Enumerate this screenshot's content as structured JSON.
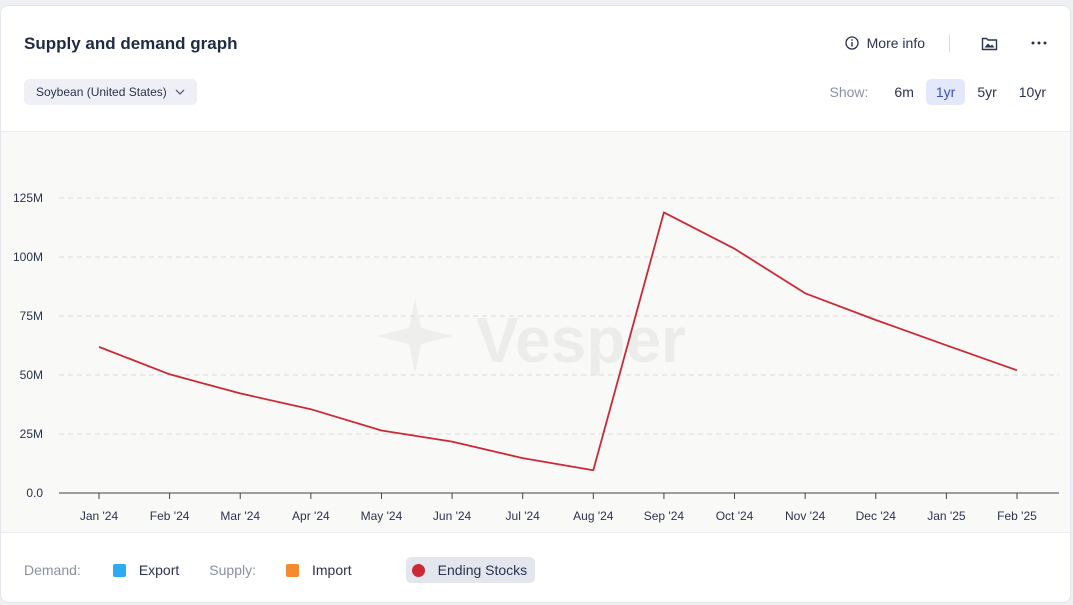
{
  "header": {
    "title": "Supply and demand graph",
    "more_info": "More info",
    "icons": [
      "info-icon",
      "image-icon",
      "more-icon"
    ]
  },
  "controls": {
    "commodity": "Soybean (United States)",
    "show_label": "Show:",
    "ranges": [
      "6m",
      "1yr",
      "5yr",
      "10yr"
    ],
    "active_range": "1yr"
  },
  "watermark": "Vesper",
  "chart_data": {
    "type": "line",
    "categories": [
      "Jan '24",
      "Feb '24",
      "Mar '24",
      "Apr '24",
      "May '24",
      "Jun '24",
      "Jul '24",
      "Aug '24",
      "Sep '24",
      "Oct '24",
      "Nov '24",
      "Dec '24",
      "Jan '25",
      "Feb '25"
    ],
    "y_ticks": [
      "0.0",
      "25M",
      "50M",
      "75M",
      "100M",
      "125M"
    ],
    "ylim": [
      0,
      125
    ],
    "grid": true,
    "series": [
      {
        "name": "Ending Stocks",
        "color": "#cc2936",
        "values": [
          61.9,
          50.3,
          42.2,
          35.5,
          26.5,
          21.8,
          14.8,
          9.6,
          118.9,
          103.5,
          84.6,
          73.3,
          62.6,
          52.0
        ]
      }
    ]
  },
  "legend": {
    "demand_label": "Demand:",
    "supply_label": "Supply:",
    "items": [
      {
        "label": "Export",
        "color": "#2eaaf2"
      },
      {
        "label": "Import",
        "color": "#f58a2e"
      },
      {
        "label": "Ending Stocks",
        "color": "#cc2936"
      }
    ]
  }
}
